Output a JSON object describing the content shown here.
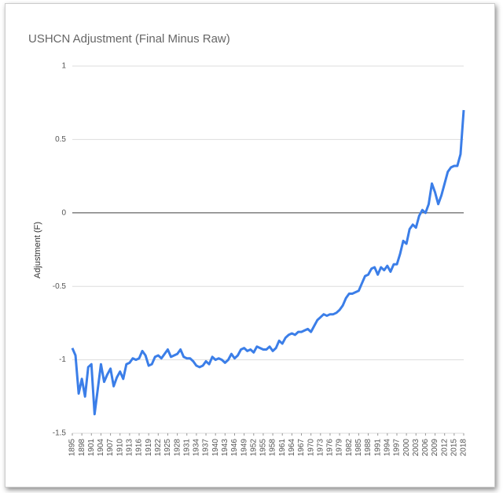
{
  "chart_data": {
    "type": "line",
    "title": "USHCN Adjustment (Final Minus Raw)",
    "ylabel": "Adjustment (F)",
    "x": [
      1895,
      1896,
      1897,
      1898,
      1899,
      1900,
      1901,
      1902,
      1903,
      1904,
      1905,
      1906,
      1907,
      1908,
      1909,
      1910,
      1911,
      1912,
      1913,
      1914,
      1915,
      1916,
      1917,
      1918,
      1919,
      1920,
      1921,
      1922,
      1923,
      1924,
      1925,
      1926,
      1927,
      1928,
      1929,
      1930,
      1931,
      1932,
      1933,
      1934,
      1935,
      1936,
      1937,
      1938,
      1939,
      1940,
      1941,
      1942,
      1943,
      1944,
      1945,
      1946,
      1947,
      1948,
      1949,
      1950,
      1951,
      1952,
      1953,
      1954,
      1955,
      1956,
      1957,
      1958,
      1959,
      1960,
      1961,
      1962,
      1963,
      1964,
      1965,
      1966,
      1967,
      1968,
      1969,
      1970,
      1971,
      1972,
      1973,
      1974,
      1975,
      1976,
      1977,
      1978,
      1979,
      1980,
      1981,
      1982,
      1983,
      1984,
      1985,
      1986,
      1987,
      1988,
      1989,
      1990,
      1991,
      1992,
      1993,
      1994,
      1995,
      1996,
      1997,
      1998,
      1999,
      2000,
      2001,
      2002,
      2003,
      2004,
      2005,
      2006,
      2007,
      2008,
      2009,
      2010,
      2011,
      2012,
      2013,
      2014,
      2015,
      2016,
      2017,
      2018
    ],
    "values": [
      -0.92,
      -0.97,
      -1.23,
      -1.13,
      -1.25,
      -1.05,
      -1.03,
      -1.37,
      -1.2,
      -1.03,
      -1.15,
      -1.1,
      -1.06,
      -1.18,
      -1.12,
      -1.08,
      -1.13,
      -1.03,
      -1.02,
      -0.99,
      -1.0,
      -0.99,
      -0.94,
      -0.97,
      -1.04,
      -1.03,
      -0.98,
      -0.97,
      -0.99,
      -0.96,
      -0.93,
      -0.98,
      -0.97,
      -0.96,
      -0.93,
      -0.98,
      -0.99,
      -0.99,
      -1.01,
      -1.04,
      -1.05,
      -1.04,
      -1.01,
      -1.03,
      -0.98,
      -1.0,
      -0.99,
      -1.0,
      -1.02,
      -1.0,
      -0.96,
      -0.99,
      -0.97,
      -0.93,
      -0.92,
      -0.94,
      -0.93,
      -0.95,
      -0.91,
      -0.92,
      -0.93,
      -0.93,
      -0.91,
      -0.94,
      -0.92,
      -0.87,
      -0.89,
      -0.85,
      -0.83,
      -0.82,
      -0.83,
      -0.81,
      -0.81,
      -0.8,
      -0.79,
      -0.81,
      -0.77,
      -0.73,
      -0.71,
      -0.69,
      -0.7,
      -0.69,
      -0.69,
      -0.68,
      -0.66,
      -0.63,
      -0.58,
      -0.55,
      -0.55,
      -0.54,
      -0.53,
      -0.48,
      -0.43,
      -0.42,
      -0.38,
      -0.37,
      -0.42,
      -0.37,
      -0.39,
      -0.36,
      -0.4,
      -0.35,
      -0.35,
      -0.28,
      -0.19,
      -0.21,
      -0.11,
      -0.08,
      -0.1,
      -0.02,
      0.02,
      0.0,
      0.06,
      0.2,
      0.14,
      0.06,
      0.12,
      0.2,
      0.28,
      0.31,
      0.32,
      0.32,
      0.4,
      0.7
    ],
    "color": "#3b7ee8",
    "xlim": [
      1895,
      2018
    ],
    "xticks": [
      1895,
      1898,
      1901,
      1904,
      1907,
      1910,
      1913,
      1916,
      1919,
      1922,
      1925,
      1928,
      1931,
      1934,
      1937,
      1940,
      1943,
      1946,
      1949,
      1952,
      1955,
      1958,
      1961,
      1964,
      1967,
      1970,
      1973,
      1976,
      1979,
      1982,
      1985,
      1988,
      1991,
      1994,
      1997,
      2000,
      2003,
      2006,
      2009,
      2012,
      2015,
      2018
    ],
    "ylim": [
      -1.5,
      1
    ],
    "yticks": [
      -1.5,
      -1,
      -0.5,
      0,
      0.5,
      1
    ],
    "grid": true
  }
}
